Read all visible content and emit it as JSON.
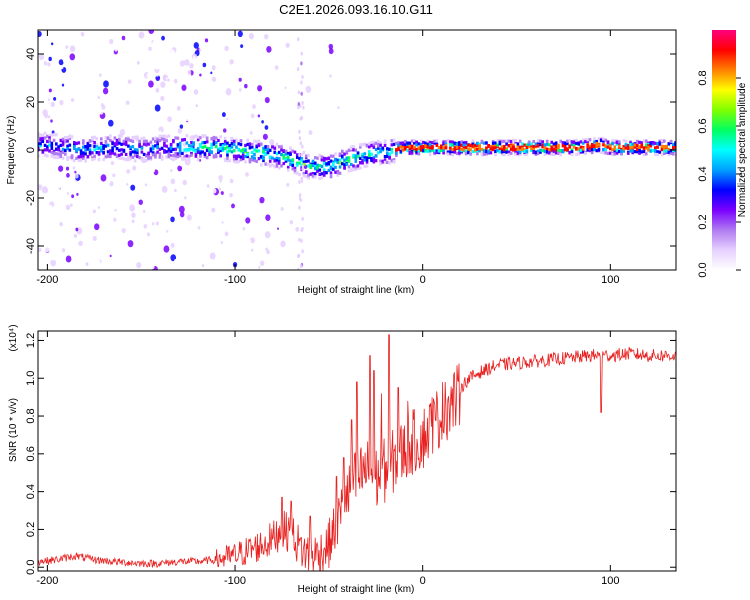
{
  "title": "C2E1.2026.093.16.10.G11",
  "chart_data": [
    {
      "type": "heatmap",
      "title": "C2E1.2026.093.16.10.G11",
      "xlabel": "Height of straight line (km)",
      "ylabel": "Frequency (Hz)",
      "xlim": [
        -205,
        135
      ],
      "ylim": [
        -50,
        50
      ],
      "x_ticks": [
        -200,
        -100,
        0,
        100
      ],
      "x_tick_labels": [
        "-200",
        "-100",
        "0",
        "100"
      ],
      "y_ticks": [
        -40,
        -20,
        0,
        20,
        40
      ],
      "y_tick_labels": [
        "-40",
        "-20",
        "0",
        "20",
        "40"
      ],
      "grid": false,
      "colorbar": {
        "label": "Normalized spectral amplitude",
        "range": [
          0,
          1
        ],
        "ticks": [
          0.0,
          0.2,
          0.4,
          0.6,
          0.8
        ],
        "tick_labels": [
          "0.0",
          "0.2",
          "0.4",
          "0.6",
          "0.8"
        ],
        "colors": [
          "#ffffff",
          "#e6d0ff",
          "#b07af0",
          "#7a00ff",
          "#0000ff",
          "#00a0ff",
          "#00ffff",
          "#00ff60",
          "#80ff00",
          "#ffff00",
          "#ff8000",
          "#ff0000",
          "#ff0080"
        ]
      },
      "signal_path": {
        "x": [
          -200,
          -190,
          -180,
          -170,
          -160,
          -150,
          -140,
          -130,
          -120,
          -110,
          -100,
          -90,
          -80,
          -70,
          -60,
          -50,
          -40,
          -30,
          -20,
          -10,
          0,
          20,
          40,
          60,
          80,
          95,
          100,
          120,
          135
        ],
        "y": [
          2,
          1,
          0,
          1,
          1,
          0,
          1,
          1,
          1,
          1,
          0,
          -1,
          -2,
          -4,
          -7,
          -7,
          -4,
          -2,
          -1,
          1,
          1,
          1,
          1,
          1,
          1,
          2,
          1,
          1,
          1
        ]
      }
    },
    {
      "type": "line",
      "xlabel": "Height of straight line (km)",
      "ylabel": "SNR (10 * v/v)",
      "y_multiplier": "(x10⁴)",
      "xlim": [
        -205,
        135
      ],
      "ylim": [
        -0.02,
        1.25
      ],
      "x_ticks": [
        -200,
        -100,
        0,
        100
      ],
      "x_tick_labels": [
        "-200",
        "-100",
        "0",
        "100"
      ],
      "y_ticks": [
        0.0,
        0.2,
        0.4,
        0.6,
        0.8,
        1.0,
        1.2
      ],
      "y_tick_labels": [
        "0.0",
        "0.2",
        "0.4",
        "0.6",
        "0.8",
        "1.0",
        "1.2"
      ],
      "grid": false,
      "series": [
        {
          "name": "SNR",
          "color": "#e8201f",
          "x": [
            -205,
            -195,
            -185,
            -180,
            -175,
            -165,
            -150,
            -140,
            -130,
            -120,
            -110,
            -100,
            -95,
            -90,
            -85,
            -80,
            -75,
            -70,
            -65,
            -60,
            -55,
            -50,
            -45,
            -40,
            -35,
            -30,
            -25,
            -20,
            -15,
            -10,
            -5,
            0,
            5,
            10,
            15,
            20,
            25,
            30,
            35,
            40,
            50,
            60,
            70,
            80,
            90,
            95,
            100,
            110,
            120,
            135
          ],
          "y": [
            0.03,
            0.04,
            0.06,
            0.05,
            0.04,
            0.03,
            0.02,
            0.02,
            0.03,
            0.03,
            0.04,
            0.06,
            0.08,
            0.1,
            0.12,
            0.15,
            0.2,
            0.18,
            0.1,
            0.06,
            0.07,
            0.12,
            0.25,
            0.4,
            0.5,
            0.55,
            0.5,
            0.55,
            0.6,
            0.65,
            0.7,
            0.72,
            0.78,
            0.85,
            0.9,
            0.95,
            1.0,
            1.03,
            1.05,
            1.07,
            1.08,
            1.09,
            1.1,
            1.11,
            1.12,
            1.12,
            1.12,
            1.13,
            1.12,
            1.12
          ]
        }
      ],
      "spikes": {
        "x": [
          -75,
          -70,
          -60,
          -46,
          -42,
          -38,
          -35,
          -28,
          -26,
          -22,
          -18,
          -13,
          -8,
          5,
          12,
          95
        ],
        "y": [
          0.37,
          0.35,
          0.27,
          0.48,
          0.58,
          0.78,
          0.98,
          1.12,
          1.04,
          0.92,
          1.23,
          0.95,
          0.88,
          0.9,
          0.98,
          0.82
        ]
      }
    }
  ]
}
